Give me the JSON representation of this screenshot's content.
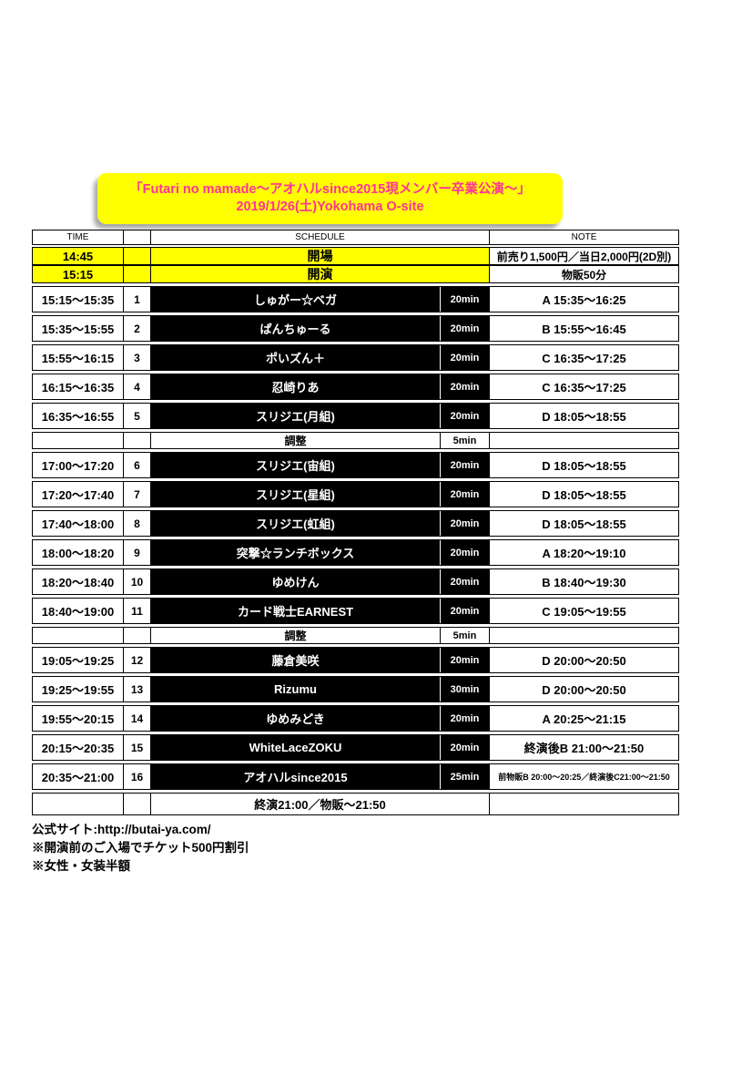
{
  "colors": {
    "banner_yellow": "#FFFF00",
    "title_pink": "#FF3399",
    "act_bar_black": "#000000",
    "paper_white": "#FFFFFF"
  },
  "title": {
    "line1": "「Futari no mamade～アオハルsince2015現メンバー卒業公演～」",
    "line2": "2019/1/26(土)Yokohama O-site"
  },
  "table": {
    "headers": {
      "time": "TIME",
      "schedule": "SCHEDULE",
      "note": "NOTE"
    },
    "pre_rows": [
      {
        "time": "14:45",
        "label": "開場",
        "note": "前売り1,500円／当日2,000円(2D別)"
      },
      {
        "time": "15:15",
        "label": "開演",
        "note": "物販50分"
      }
    ],
    "rows": [
      {
        "type": "act",
        "time": "15:15～15:35",
        "num": "1",
        "name": "しゅがー☆ベガ",
        "duration": "20min",
        "note": "A 15:35～16:25"
      },
      {
        "type": "act",
        "time": "15:35～15:55",
        "num": "2",
        "name": "ぱんちゅーる",
        "duration": "20min",
        "note": "B 15:55～16:45"
      },
      {
        "type": "act",
        "time": "15:55～16:15",
        "num": "3",
        "name": "ポいズん＋",
        "duration": "20min",
        "note": "C 16:35～17:25"
      },
      {
        "type": "act",
        "time": "16:15～16:35",
        "num": "4",
        "name": "忍崎りあ",
        "duration": "20min",
        "note": "C 16:35～17:25"
      },
      {
        "type": "act",
        "time": "16:35～16:55",
        "num": "5",
        "name": "スリジエ(月組)",
        "duration": "20min",
        "note": "D 18:05～18:55"
      },
      {
        "type": "adjust",
        "name": "調整",
        "duration": "5min"
      },
      {
        "type": "act",
        "time": "17:00～17:20",
        "num": "6",
        "name": "スリジエ(宙組)",
        "duration": "20min",
        "note": "D 18:05～18:55"
      },
      {
        "type": "act",
        "time": "17:20～17:40",
        "num": "7",
        "name": "スリジエ(星組)",
        "duration": "20min",
        "note": "D 18:05～18:55"
      },
      {
        "type": "act",
        "time": "17:40～18:00",
        "num": "8",
        "name": "スリジエ(虹組)",
        "duration": "20min",
        "note": "D 18:05～18:55"
      },
      {
        "type": "act",
        "time": "18:00～18:20",
        "num": "9",
        "name": "突撃☆ランチボックス",
        "duration": "20min",
        "note": "A 18:20～19:10"
      },
      {
        "type": "act",
        "time": "18:20～18:40",
        "num": "10",
        "name": "ゆめけん",
        "duration": "20min",
        "note": "B 18:40～19:30"
      },
      {
        "type": "act",
        "time": "18:40～19:00",
        "num": "11",
        "name": "カード戦士EARNEST",
        "duration": "20min",
        "note": "C 19:05～19:55"
      },
      {
        "type": "adjust",
        "name": "調整",
        "duration": "5min"
      },
      {
        "type": "act",
        "time": "19:05～19:25",
        "num": "12",
        "name": "藤倉美咲",
        "duration": "20min",
        "note": "D 20:00～20:50"
      },
      {
        "type": "act",
        "time": "19:25～19:55",
        "num": "13",
        "name": "Rizumu",
        "duration": "30min",
        "note": "D 20:00～20:50"
      },
      {
        "type": "act",
        "time": "19:55～20:15",
        "num": "14",
        "name": "ゆめみどき",
        "duration": "20min",
        "note": "A 20:25～21:15"
      },
      {
        "type": "act",
        "time": "20:15～20:35",
        "num": "15",
        "name": "WhiteLaceZOKU",
        "duration": "20min",
        "note": "終演後B 21:00～21:50"
      },
      {
        "type": "act",
        "time": "20:35～21:00",
        "num": "16",
        "name": "アオハルsince2015",
        "duration": "25min",
        "note": "前物販B 20:00～20:25／終演後C21:00～21:50"
      },
      {
        "type": "end",
        "name": "終演21:00／物販～21:50"
      }
    ]
  },
  "footer": {
    "lines": [
      "公式サイト:http://butai-ya.com/",
      "※開演前のご入場でチケット500円割引",
      "※女性・女装半額"
    ]
  }
}
